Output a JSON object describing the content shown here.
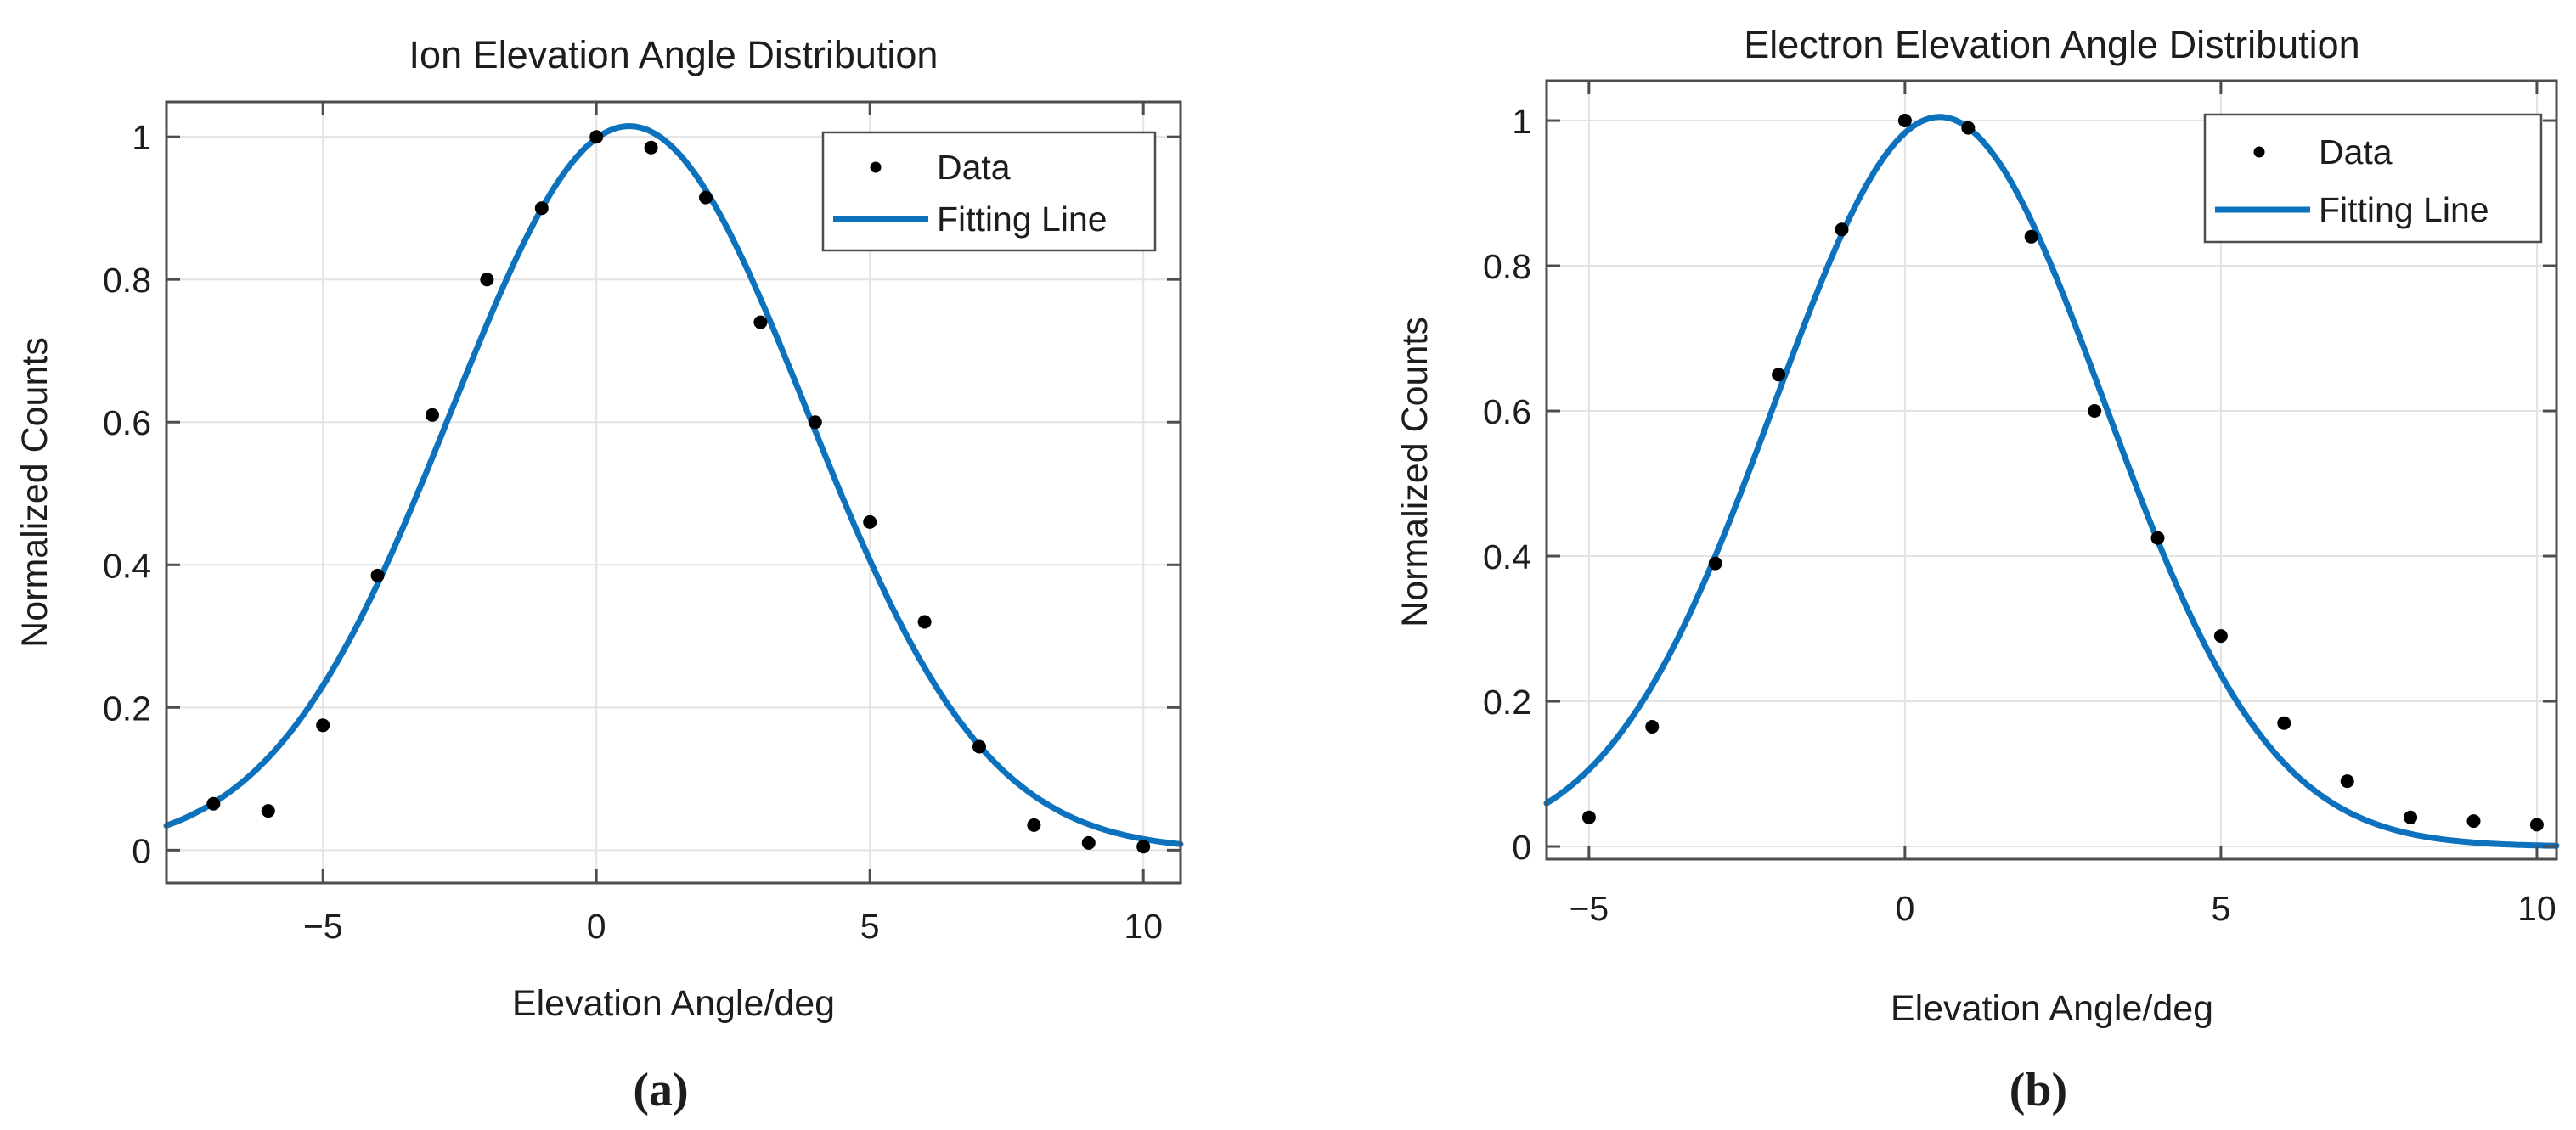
{
  "figure": {
    "background": "#ffffff",
    "colors": {
      "fit_line": "#0d72bd",
      "data_marker": "#000000",
      "axis": "#4d4d4d",
      "grid": "#e3e3e3",
      "legend_border": "#4d4d4d",
      "text": "#1d1d1d"
    },
    "panels": [
      {
        "id": "a",
        "caption_label": "(a)"
      },
      {
        "id": "b",
        "caption_label": "(b)"
      }
    ]
  },
  "chart_data": [
    {
      "type": "scatter",
      "title": "Ion Elevation Angle Distribution",
      "xlabel": "Elevation Angle/deg",
      "ylabel": "Normalized Counts",
      "xlim": [
        -7.86,
        10.68
      ],
      "ylim": [
        -0.046,
        1.049
      ],
      "xticks": [
        -5,
        0,
        5,
        10
      ],
      "yticks": [
        0,
        0.2,
        0.4,
        0.6,
        0.8,
        1
      ],
      "grid": true,
      "legend_position": "top-right",
      "series": [
        {
          "name": "Data",
          "type": "scatter",
          "color": "#000000",
          "x": [
            -7,
            -6,
            -5,
            -4,
            -3,
            -2,
            -1,
            0,
            1,
            2,
            3,
            4,
            5,
            6,
            7,
            8,
            9,
            10
          ],
          "y": [
            0.065,
            0.055,
            0.175,
            0.385,
            0.61,
            0.8,
            0.9,
            1.0,
            0.985,
            0.915,
            0.74,
            0.6,
            0.46,
            0.32,
            0.145,
            0.035,
            0.01,
            0.005
          ]
        },
        {
          "name": "Fitting Line",
          "type": "gaussian_fit",
          "color": "#0d72bd",
          "amplitude": 1.015,
          "mean": 0.6,
          "e_width": 4.6
        }
      ]
    },
    {
      "type": "scatter",
      "title": "Electron Elevation Angle Distribution",
      "xlabel": "Elevation Angle/deg",
      "ylabel": "Normalized Counts",
      "xlim": [
        -5.67,
        10.31
      ],
      "ylim": [
        -0.0175,
        1.055
      ],
      "xticks": [
        -5,
        0,
        5,
        10
      ],
      "yticks": [
        0,
        0.2,
        0.4,
        0.6,
        0.8,
        1
      ],
      "grid": true,
      "legend_position": "top-right",
      "series": [
        {
          "name": "Data",
          "type": "scatter",
          "color": "#000000",
          "x": [
            -5,
            -4,
            -3,
            -2,
            -1,
            0,
            1,
            2,
            3,
            4,
            5,
            6,
            7,
            8,
            9,
            10
          ],
          "y": [
            0.04,
            0.165,
            0.39,
            0.65,
            0.85,
            1.0,
            0.99,
            0.84,
            0.6,
            0.425,
            0.29,
            0.17,
            0.09,
            0.04,
            0.035,
            0.03
          ]
        },
        {
          "name": "Fitting Line",
          "type": "gaussian_fit",
          "color": "#0d72bd",
          "amplitude": 1.005,
          "mean": 0.55,
          "e_width": 3.7
        }
      ]
    }
  ]
}
